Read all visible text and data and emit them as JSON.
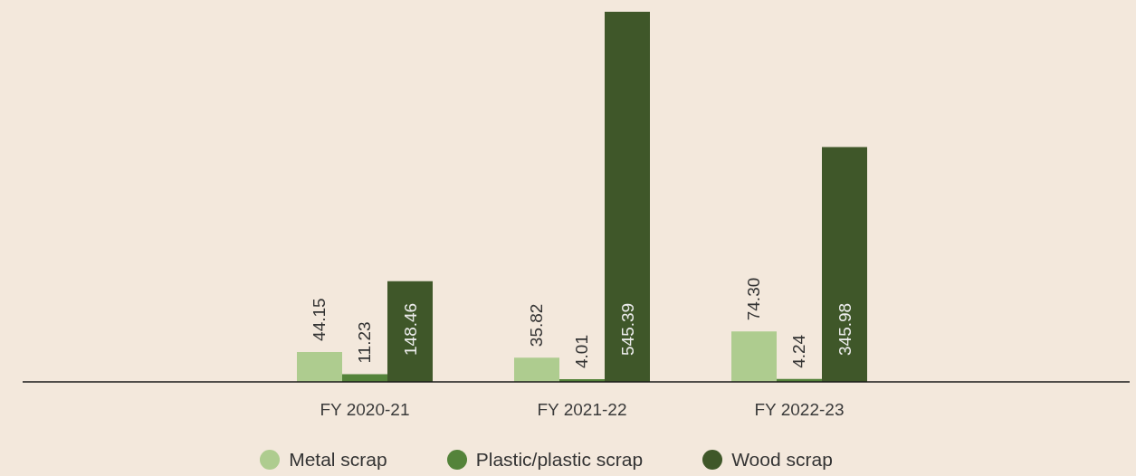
{
  "chart_data": {
    "type": "bar",
    "categories": [
      "FY 2020-21",
      "FY 2021-22",
      "FY 2022-23"
    ],
    "series": [
      {
        "name": "Metal scrap",
        "color": "#aecc8f",
        "values": [
          44.15,
          35.82,
          74.3
        ],
        "value_labels": [
          "44.15",
          "35.82",
          "74.30"
        ]
      },
      {
        "name": "Plastic/plastic scrap",
        "color": "#54833a",
        "values": [
          11.23,
          4.01,
          4.24
        ],
        "value_labels": [
          "11.23",
          "4.01",
          "4.24"
        ]
      },
      {
        "name": "Wood scrap",
        "color": "#3f5729",
        "values": [
          148.46,
          545.39,
          345.98
        ],
        "value_labels": [
          "148.46",
          "545.39",
          "345.98"
        ]
      }
    ],
    "legend": "bottom"
  }
}
